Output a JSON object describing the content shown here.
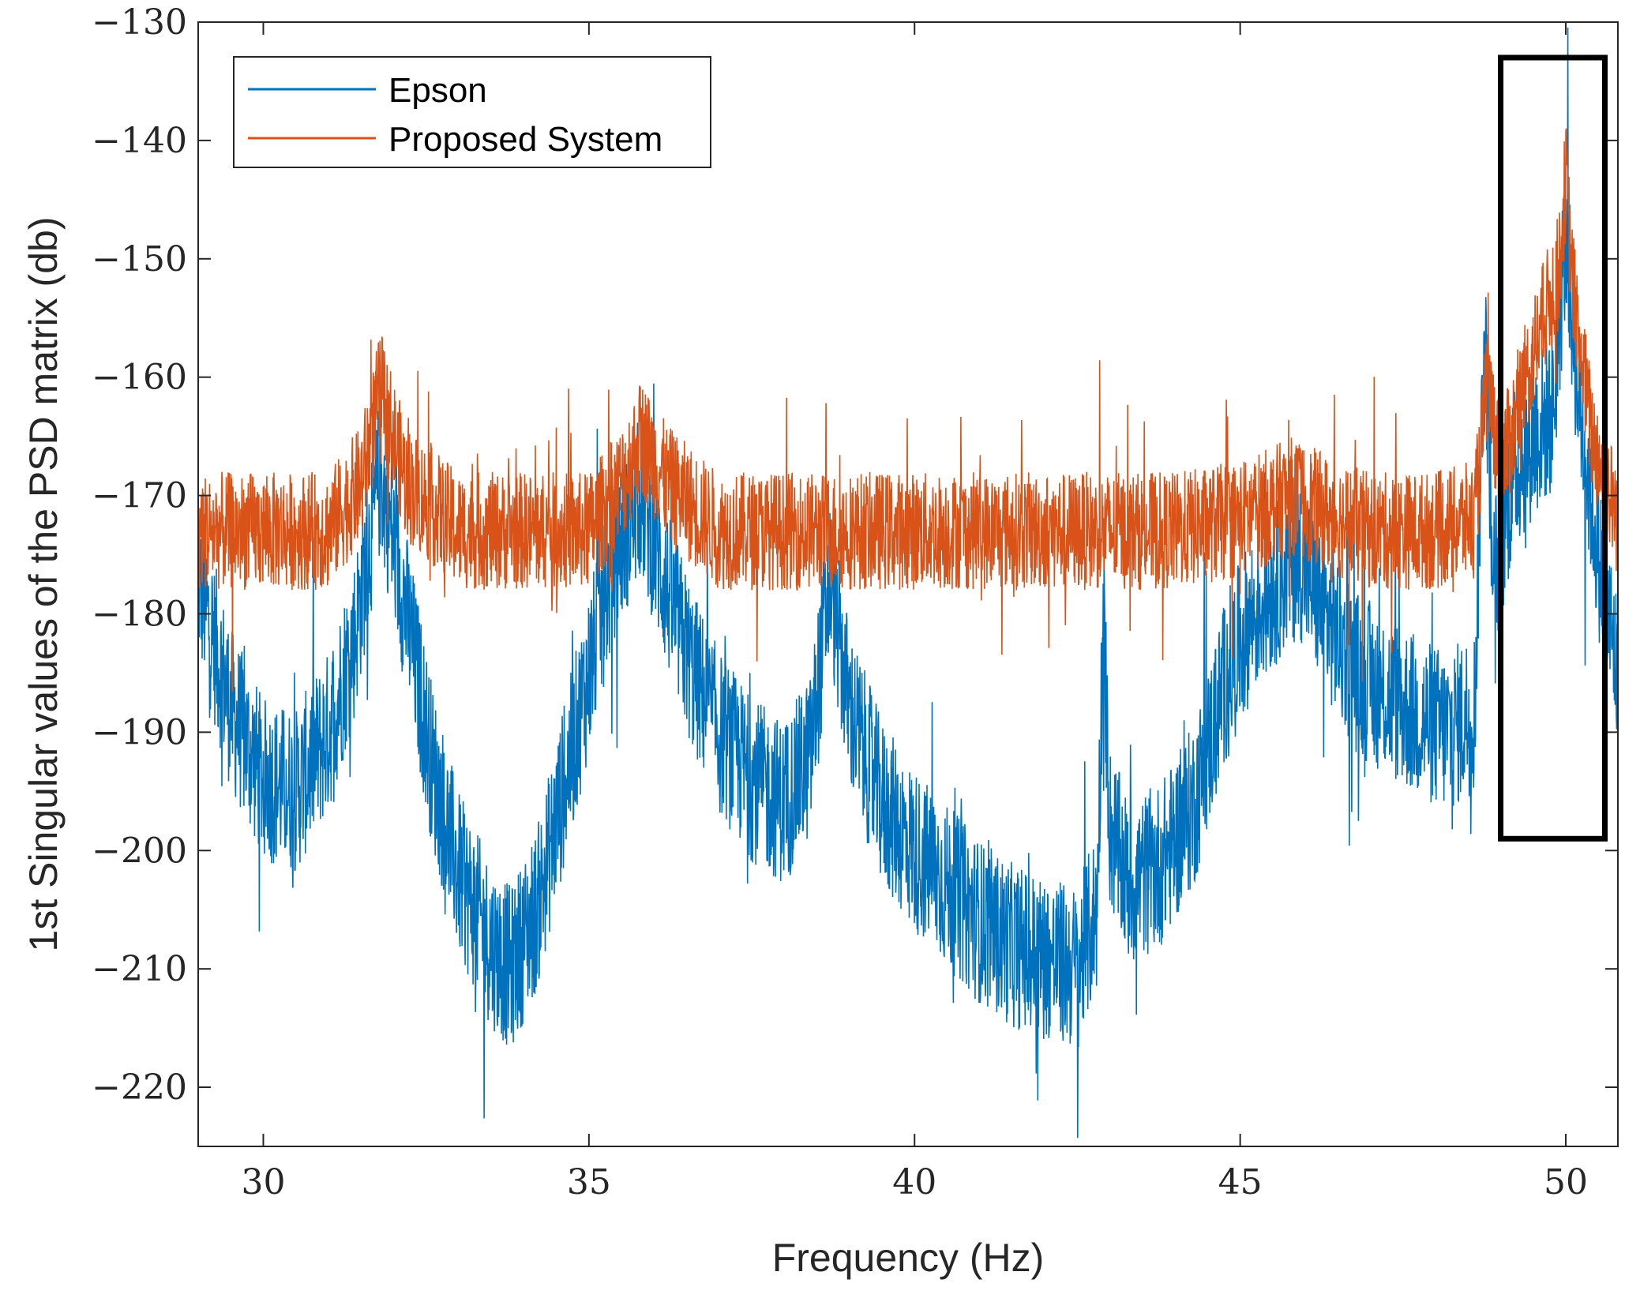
{
  "chart_data": {
    "type": "line",
    "title": "",
    "xlabel": "Frequency (Hz)",
    "ylabel": "1st Singular values of the PSD matrix (db)",
    "xlim": [
      29,
      50.8
    ],
    "ylim": [
      -225,
      -130
    ],
    "x_ticks": [
      30,
      35,
      40,
      45,
      50
    ],
    "x_tick_labels": [
      "30",
      "35",
      "40",
      "45",
      "50"
    ],
    "y_ticks": [
      -130,
      -140,
      -150,
      -160,
      -170,
      -180,
      -190,
      -200,
      -210,
      -220
    ],
    "y_tick_labels": [
      "−130",
      "−140",
      "−150",
      "−160",
      "−170",
      "−180",
      "−190",
      "−200",
      "−210",
      "−220"
    ],
    "grid": false,
    "legend_position": "top-left",
    "series": [
      {
        "name": "Epson",
        "color": "#0072BD",
        "approximate_envelope": {
          "x": [
            29.0,
            29.5,
            30.0,
            30.5,
            31.0,
            31.4,
            31.8,
            32.2,
            32.6,
            33.0,
            33.5,
            33.8,
            34.2,
            34.6,
            35.0,
            35.4,
            35.8,
            36.2,
            36.6,
            37.0,
            37.5,
            38.0,
            38.4,
            38.7,
            39.0,
            39.5,
            40.0,
            40.5,
            41.0,
            41.5,
            42.0,
            42.5,
            42.8,
            42.9,
            43.0,
            43.3,
            43.8,
            44.3,
            44.8,
            45.2,
            45.6,
            45.9,
            46.3,
            46.8,
            47.3,
            47.8,
            48.2,
            48.6,
            48.75,
            48.9,
            49.2,
            49.5,
            49.8,
            50.0,
            50.2,
            50.5,
            50.8
          ],
          "y": [
            -177,
            -188,
            -194,
            -195,
            -190,
            -182,
            -168,
            -180,
            -193,
            -202,
            -208,
            -210,
            -205,
            -195,
            -185,
            -175,
            -170,
            -178,
            -185,
            -190,
            -194,
            -196,
            -192,
            -177,
            -188,
            -196,
            -200,
            -203,
            -206,
            -208,
            -209,
            -210,
            -205,
            -180,
            -198,
            -203,
            -201,
            -196,
            -185,
            -180,
            -177,
            -175,
            -180,
            -185,
            -187,
            -189,
            -190,
            -188,
            -155,
            -177,
            -168,
            -165,
            -163,
            -148,
            -162,
            -175,
            -185
          ]
        }
      },
      {
        "name": "Proposed System",
        "color": "#D95319",
        "approximate_envelope": {
          "x": [
            29.0,
            30.0,
            31.0,
            31.5,
            31.8,
            32.2,
            33.0,
            34.0,
            35.0,
            35.5,
            35.8,
            36.2,
            37.0,
            38.0,
            39.0,
            40.0,
            41.0,
            42.0,
            43.0,
            44.0,
            45.0,
            45.8,
            46.5,
            47.0,
            48.0,
            48.6,
            48.8,
            49.0,
            49.3,
            49.6,
            49.9,
            50.0,
            50.1,
            50.4,
            50.8
          ],
          "y": [
            -173,
            -173,
            -173,
            -169,
            -161,
            -169,
            -173,
            -173,
            -173,
            -169,
            -165,
            -169,
            -173,
            -173,
            -173,
            -173,
            -173,
            -173,
            -173,
            -173,
            -172,
            -170,
            -172,
            -173,
            -173,
            -172,
            -160,
            -168,
            -162,
            -156,
            -151,
            -143,
            -152,
            -165,
            -172
          ]
        }
      }
    ],
    "annotation": "highlight box around 49–50.6 Hz, −133 to −199 db"
  }
}
